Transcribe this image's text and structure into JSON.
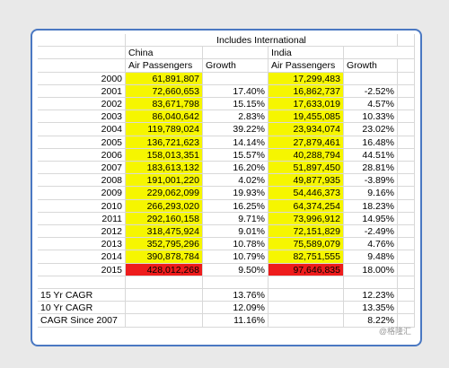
{
  "header": {
    "group": "Includes International",
    "countries": [
      "China",
      "India"
    ],
    "columns": [
      "Air Passengers",
      "Growth",
      "Air Passengers",
      "Growth"
    ]
  },
  "rows": [
    {
      "year": "2000",
      "china": "61,891,807",
      "india": "17,299,483"
    },
    {
      "year": "2001",
      "china": "72,660,653",
      "china_growth": "17.40%",
      "india": "16,862,737",
      "india_growth": "-2.52%"
    },
    {
      "year": "2002",
      "china": "83,671,798",
      "china_growth": "15.15%",
      "india": "17,633,019",
      "india_growth": "4.57%"
    },
    {
      "year": "2003",
      "china": "86,040,642",
      "china_growth": "2.83%",
      "india": "19,455,085",
      "india_growth": "10.33%"
    },
    {
      "year": "2004",
      "china": "119,789,024",
      "china_growth": "39.22%",
      "india": "23,934,074",
      "india_growth": "23.02%"
    },
    {
      "year": "2005",
      "china": "136,721,623",
      "china_growth": "14.14%",
      "india": "27,879,461",
      "india_growth": "16.48%"
    },
    {
      "year": "2006",
      "china": "158,013,351",
      "china_growth": "15.57%",
      "india": "40,288,794",
      "india_growth": "44.51%"
    },
    {
      "year": "2007",
      "china": "183,613,132",
      "china_growth": "16.20%",
      "india": "51,897,450",
      "india_growth": "28.81%"
    },
    {
      "year": "2008",
      "china": "191,001,220",
      "china_growth": "4.02%",
      "india": "49,877,935",
      "india_growth": "-3.89%"
    },
    {
      "year": "2009",
      "china": "229,062,099",
      "china_growth": "19.93%",
      "india": "54,446,373",
      "india_growth": "9.16%"
    },
    {
      "year": "2010",
      "china": "266,293,020",
      "china_growth": "16.25%",
      "india": "64,374,254",
      "india_growth": "18.23%"
    },
    {
      "year": "2011",
      "china": "292,160,158",
      "china_growth": "9.71%",
      "india": "73,996,912",
      "india_growth": "14.95%"
    },
    {
      "year": "2012",
      "china": "318,475,924",
      "china_growth": "9.01%",
      "india": "72,151,829",
      "india_growth": "-2.49%"
    },
    {
      "year": "2013",
      "china": "352,795,296",
      "china_growth": "10.78%",
      "india": "75,589,079",
      "india_growth": "4.76%"
    },
    {
      "year": "2014",
      "china": "390,878,784",
      "china_growth": "10.79%",
      "india": "82,751,555",
      "india_growth": "9.48%"
    },
    {
      "year": "2015",
      "china": "428,012,268",
      "china_growth": "9.50%",
      "india": "97,646,835",
      "india_growth": "18.00%",
      "highlight": true
    }
  ],
  "cagr": [
    {
      "label": "15 Yr CAGR",
      "china": "13.76%",
      "india": "12.23%"
    },
    {
      "label": "10 Yr CAGR",
      "china": "12.09%",
      "india": "13.35%"
    },
    {
      "label": "CAGR Since 2007",
      "china": "11.16%",
      "india": "8.22%"
    }
  ],
  "watermark": "@格隆汇"
}
